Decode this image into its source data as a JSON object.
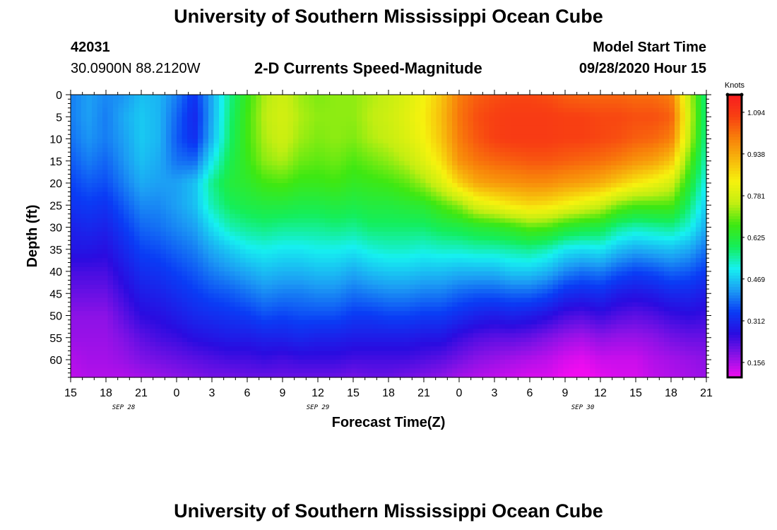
{
  "page": {
    "title_top": "University of Southern Mississippi Ocean Cube",
    "title_bottom": "University of Southern Mississippi Ocean Cube",
    "station_id": "42031",
    "station_coords": "30.0900N 88.2120W",
    "chart_title": "2-D Currents Speed-Magnitude",
    "model_start_label": "Model Start Time",
    "model_start_value": "09/28/2020 Hour 15"
  },
  "colors": {
    "ramp": [
      "#f00cf0",
      "#8a12e6",
      "#2a0ce0",
      "#0a3cf5",
      "#1c9cf4",
      "#16f0f0",
      "#14ee5a",
      "#3ee812",
      "#c2ee12",
      "#f6f20e",
      "#f7b80c",
      "#f8800a",
      "#f84012",
      "#f81c20"
    ]
  },
  "chart_data": {
    "type": "heatmap",
    "title": "2-D Currents Speed-Magnitude",
    "xlabel": "Forecast Time(Z)",
    "ylabel": "Depth (ft)",
    "colorbar_unit": "Knots",
    "colorbar_ticks": [
      "1.094",
      "0.938",
      "0.781",
      "0.625",
      "0.469",
      "0.312",
      "0.156"
    ],
    "colorbar_values": [
      1.094,
      0.938,
      0.781,
      0.625,
      0.469,
      0.312,
      0.156
    ],
    "vmin": 0.1,
    "vmax": 1.16,
    "xlim": [
      0,
      54
    ],
    "ylim": [
      0,
      64
    ],
    "x_tick_hours": [
      0,
      3,
      6,
      9,
      12,
      15,
      18,
      21,
      24,
      27,
      30,
      33,
      36,
      39,
      42,
      45,
      48,
      51,
      54
    ],
    "x_tick_labels": [
      "15",
      "18",
      "21",
      "0",
      "3",
      "6",
      "9",
      "12",
      "15",
      "18",
      "21",
      "0",
      "3",
      "6",
      "9",
      "12",
      "15",
      "18",
      "21"
    ],
    "date_labels": [
      {
        "hour": 4.5,
        "text": "SEP 28"
      },
      {
        "hour": 21,
        "text": "SEP 29"
      },
      {
        "hour": 43.5,
        "text": "SEP 30"
      }
    ],
    "y_ticks": [
      0,
      5,
      10,
      15,
      20,
      25,
      30,
      35,
      40,
      45,
      50,
      55,
      60
    ],
    "depth_levels": [
      0,
      5,
      10,
      15,
      20,
      25,
      30,
      35,
      40,
      45,
      50,
      55,
      60,
      64
    ],
    "time_hours": [
      0,
      1.5,
      3,
      4.5,
      6,
      7.5,
      9,
      10.5,
      12,
      13.5,
      15,
      16.5,
      18,
      19.5,
      21,
      22.5,
      24,
      25.5,
      27,
      28.5,
      30,
      31.5,
      33,
      34.5,
      36,
      37.5,
      39,
      40.5,
      42,
      43.5,
      45,
      46.5,
      48,
      49.5,
      51,
      52.5,
      54
    ],
    "speed_knots": [
      [
        0.4,
        0.4,
        0.39,
        0.37,
        0.35,
        0.33,
        0.3,
        0.28,
        0.24,
        0.21,
        0.18,
        0.17,
        0.15,
        0.14
      ],
      [
        0.43,
        0.43,
        0.42,
        0.4,
        0.37,
        0.34,
        0.31,
        0.28,
        0.24,
        0.21,
        0.18,
        0.17,
        0.16,
        0.15
      ],
      [
        0.41,
        0.4,
        0.4,
        0.38,
        0.36,
        0.33,
        0.3,
        0.27,
        0.24,
        0.21,
        0.18,
        0.17,
        0.16,
        0.15
      ],
      [
        0.42,
        0.44,
        0.43,
        0.42,
        0.4,
        0.37,
        0.34,
        0.31,
        0.28,
        0.25,
        0.22,
        0.19,
        0.17,
        0.15
      ],
      [
        0.46,
        0.47,
        0.47,
        0.46,
        0.44,
        0.41,
        0.38,
        0.35,
        0.32,
        0.29,
        0.26,
        0.22,
        0.19,
        0.16
      ],
      [
        0.45,
        0.45,
        0.45,
        0.44,
        0.43,
        0.41,
        0.39,
        0.36,
        0.33,
        0.3,
        0.27,
        0.24,
        0.2,
        0.17
      ],
      [
        0.4,
        0.38,
        0.37,
        0.39,
        0.43,
        0.43,
        0.41,
        0.38,
        0.35,
        0.32,
        0.29,
        0.25,
        0.21,
        0.18
      ],
      [
        0.33,
        0.31,
        0.32,
        0.38,
        0.46,
        0.46,
        0.43,
        0.4,
        0.37,
        0.34,
        0.31,
        0.27,
        0.22,
        0.19
      ],
      [
        0.44,
        0.44,
        0.45,
        0.5,
        0.56,
        0.54,
        0.49,
        0.44,
        0.4,
        0.36,
        0.32,
        0.28,
        0.23,
        0.2
      ],
      [
        0.56,
        0.57,
        0.58,
        0.6,
        0.62,
        0.59,
        0.54,
        0.47,
        0.42,
        0.37,
        0.33,
        0.29,
        0.24,
        0.2
      ],
      [
        0.66,
        0.67,
        0.67,
        0.66,
        0.64,
        0.61,
        0.56,
        0.5,
        0.44,
        0.39,
        0.34,
        0.29,
        0.24,
        0.21
      ],
      [
        0.74,
        0.75,
        0.74,
        0.72,
        0.67,
        0.62,
        0.57,
        0.51,
        0.46,
        0.41,
        0.36,
        0.3,
        0.25,
        0.21
      ],
      [
        0.77,
        0.78,
        0.77,
        0.74,
        0.68,
        0.62,
        0.56,
        0.5,
        0.45,
        0.4,
        0.35,
        0.3,
        0.24,
        0.21
      ],
      [
        0.73,
        0.74,
        0.73,
        0.7,
        0.66,
        0.61,
        0.56,
        0.5,
        0.45,
        0.4,
        0.36,
        0.31,
        0.25,
        0.21
      ],
      [
        0.71,
        0.72,
        0.71,
        0.69,
        0.66,
        0.61,
        0.56,
        0.51,
        0.46,
        0.41,
        0.36,
        0.3,
        0.25,
        0.21
      ],
      [
        0.72,
        0.72,
        0.72,
        0.7,
        0.67,
        0.62,
        0.57,
        0.51,
        0.46,
        0.41,
        0.36,
        0.3,
        0.25,
        0.21
      ],
      [
        0.72,
        0.72,
        0.71,
        0.68,
        0.65,
        0.61,
        0.56,
        0.5,
        0.44,
        0.39,
        0.34,
        0.29,
        0.24,
        0.2
      ],
      [
        0.74,
        0.75,
        0.74,
        0.7,
        0.66,
        0.62,
        0.58,
        0.52,
        0.46,
        0.4,
        0.34,
        0.29,
        0.24,
        0.21
      ],
      [
        0.76,
        0.77,
        0.76,
        0.72,
        0.67,
        0.62,
        0.58,
        0.53,
        0.47,
        0.41,
        0.35,
        0.29,
        0.24,
        0.21
      ],
      [
        0.79,
        0.8,
        0.79,
        0.75,
        0.69,
        0.63,
        0.58,
        0.53,
        0.47,
        0.41,
        0.35,
        0.29,
        0.24,
        0.2
      ],
      [
        0.83,
        0.84,
        0.83,
        0.8,
        0.73,
        0.64,
        0.58,
        0.52,
        0.46,
        0.4,
        0.34,
        0.28,
        0.23,
        0.19
      ],
      [
        0.9,
        0.91,
        0.9,
        0.86,
        0.79,
        0.68,
        0.6,
        0.53,
        0.46,
        0.4,
        0.34,
        0.28,
        0.22,
        0.18
      ],
      [
        1.0,
        1.01,
        1.0,
        0.97,
        0.88,
        0.72,
        0.61,
        0.53,
        0.45,
        0.38,
        0.32,
        0.25,
        0.2,
        0.16
      ],
      [
        1.04,
        1.06,
        1.05,
        1.01,
        0.94,
        0.79,
        0.63,
        0.54,
        0.45,
        0.37,
        0.3,
        0.23,
        0.18,
        0.15
      ],
      [
        1.06,
        1.08,
        1.08,
        1.03,
        0.96,
        0.82,
        0.64,
        0.54,
        0.45,
        0.37,
        0.29,
        0.22,
        0.17,
        0.14
      ],
      [
        1.07,
        1.09,
        1.09,
        1.04,
        0.97,
        0.85,
        0.66,
        0.55,
        0.47,
        0.38,
        0.3,
        0.22,
        0.16,
        0.13
      ],
      [
        1.07,
        1.09,
        1.09,
        1.05,
        0.98,
        0.87,
        0.69,
        0.56,
        0.47,
        0.38,
        0.29,
        0.21,
        0.15,
        0.12
      ],
      [
        1.06,
        1.09,
        1.09,
        1.05,
        0.98,
        0.86,
        0.68,
        0.54,
        0.45,
        0.36,
        0.27,
        0.19,
        0.14,
        0.12
      ],
      [
        1.04,
        1.08,
        1.08,
        1.04,
        0.96,
        0.83,
        0.64,
        0.5,
        0.41,
        0.32,
        0.24,
        0.17,
        0.12,
        0.1
      ],
      [
        1.03,
        1.08,
        1.08,
        1.03,
        0.95,
        0.8,
        0.62,
        0.49,
        0.39,
        0.31,
        0.23,
        0.16,
        0.11,
        0.09
      ],
      [
        1.03,
        1.07,
        1.07,
        1.02,
        0.93,
        0.77,
        0.61,
        0.5,
        0.4,
        0.32,
        0.25,
        0.18,
        0.13,
        0.11
      ],
      [
        1.03,
        1.07,
        1.06,
        1.0,
        0.89,
        0.71,
        0.56,
        0.46,
        0.37,
        0.29,
        0.23,
        0.17,
        0.13,
        0.12
      ],
      [
        1.02,
        1.06,
        1.04,
        0.97,
        0.85,
        0.68,
        0.54,
        0.44,
        0.35,
        0.28,
        0.22,
        0.17,
        0.13,
        0.12
      ],
      [
        1.02,
        1.06,
        1.03,
        0.95,
        0.82,
        0.68,
        0.55,
        0.45,
        0.36,
        0.29,
        0.23,
        0.18,
        0.15,
        0.14
      ],
      [
        1.0,
        1.04,
        1.0,
        0.9,
        0.78,
        0.68,
        0.56,
        0.46,
        0.38,
        0.31,
        0.25,
        0.2,
        0.16,
        0.15
      ],
      [
        0.76,
        0.78,
        0.76,
        0.7,
        0.64,
        0.58,
        0.52,
        0.44,
        0.37,
        0.31,
        0.26,
        0.21,
        0.17,
        0.16
      ],
      [
        0.56,
        0.56,
        0.55,
        0.53,
        0.5,
        0.47,
        0.44,
        0.39,
        0.34,
        0.29,
        0.25,
        0.21,
        0.18,
        0.17
      ]
    ]
  }
}
